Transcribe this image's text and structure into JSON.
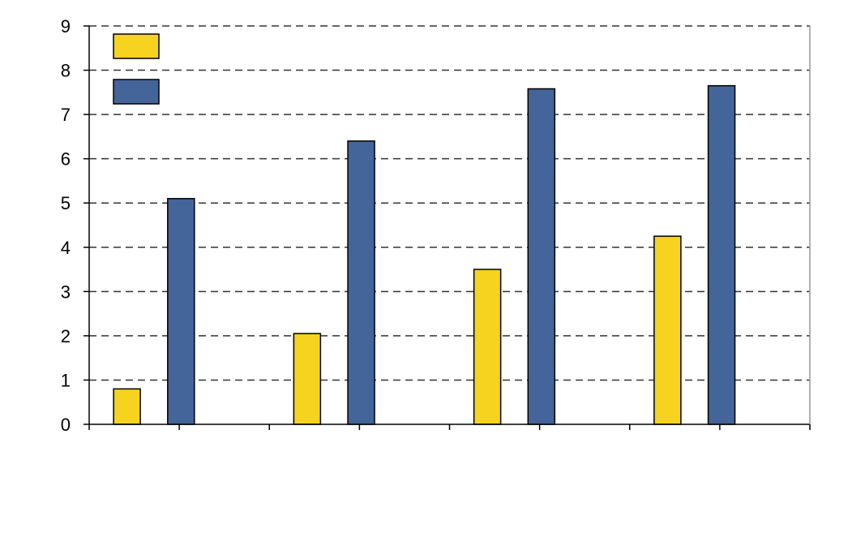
{
  "chart_data": {
    "type": "bar",
    "title": "",
    "xlabel": "",
    "ylabel": "",
    "categories": [
      "",
      "",
      "",
      ""
    ],
    "series": [
      {
        "color": "#F5D31E",
        "values": [
          0.8,
          2.05,
          3.5,
          4.25
        ]
      },
      {
        "color": "#44659A",
        "values": [
          5.1,
          6.4,
          7.58,
          7.65
        ]
      }
    ],
    "ylim": [
      0,
      9
    ],
    "yticks": [
      0,
      1,
      2,
      3,
      4,
      5,
      6,
      7,
      8,
      9
    ],
    "grid": "horizontal-dashed",
    "legend": "top-left"
  }
}
